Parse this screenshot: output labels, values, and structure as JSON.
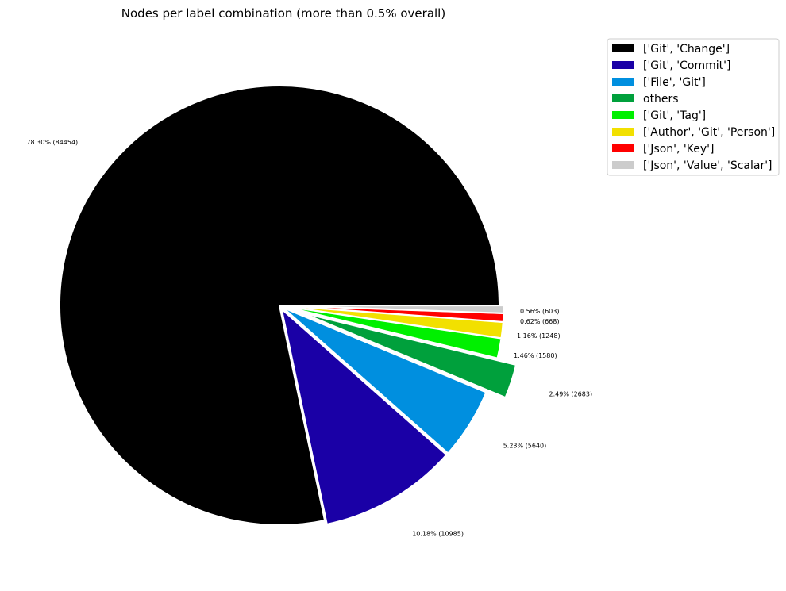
{
  "chart_data": {
    "type": "pie",
    "title": "Nodes per label combination (more than 0.5% overall)",
    "legend_position": "upper-right-outside",
    "slices": [
      {
        "label": "['Git', 'Change']",
        "percent": 78.3,
        "count": 84454,
        "color": "#000000",
        "exploded": false,
        "display": "78.30% (84454)"
      },
      {
        "label": "['Git', 'Commit']",
        "percent": 10.18,
        "count": 10985,
        "color": "#1a00a6",
        "exploded": true,
        "display": "10.18% (10985)"
      },
      {
        "label": "['File', 'Git']",
        "percent": 5.23,
        "count": 5640,
        "color": "#008fdf",
        "exploded": true,
        "display": "5.23% (5640)"
      },
      {
        "label": "others",
        "percent": 2.49,
        "count": 2683,
        "color": "#00a03c",
        "exploded": true,
        "display": "2.49% (2683)"
      },
      {
        "label": "['Git', 'Tag']",
        "percent": 1.46,
        "count": 1580,
        "color": "#00f000",
        "exploded": true,
        "display": "1.46% (1580)"
      },
      {
        "label": "['Author', 'Git', 'Person']",
        "percent": 1.16,
        "count": 1248,
        "color": "#f2e000",
        "exploded": true,
        "display": "1.16% (1248)"
      },
      {
        "label": "['Json', 'Key']",
        "percent": 0.62,
        "count": 668,
        "color": "#ff0000",
        "exploded": true,
        "display": "0.62% (668)"
      },
      {
        "label": "['Json', 'Value', 'Scalar']",
        "percent": 0.56,
        "count": 603,
        "color": "#cccccc",
        "exploded": true,
        "display": "0.56% (603)"
      }
    ]
  }
}
